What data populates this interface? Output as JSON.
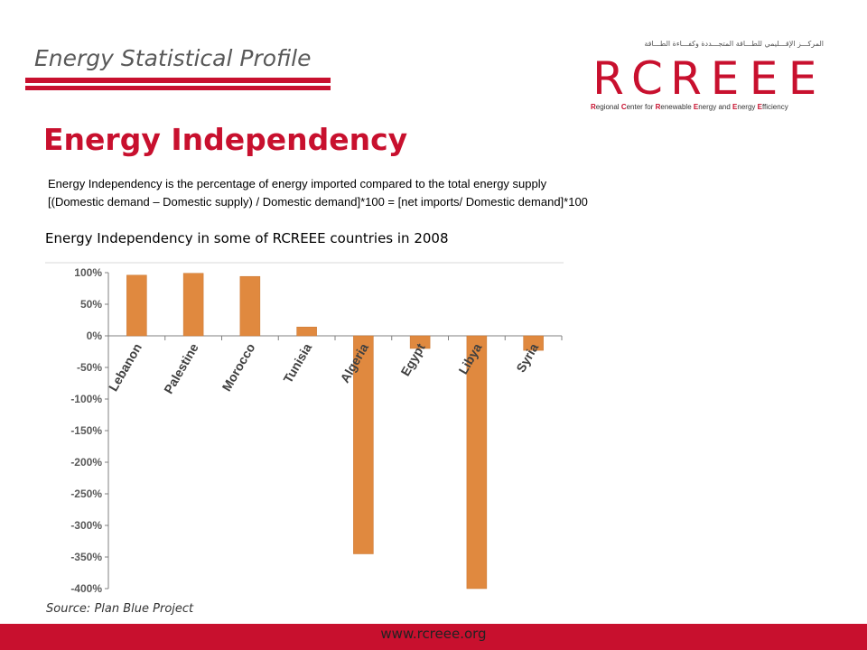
{
  "header": {
    "title": "Energy Statistical Profile"
  },
  "logo": {
    "arabic": "المركـــز الإقـــليمي للطـــاقة المتجـــددة وكفـــاءة الطـــاقة",
    "letters": [
      "R",
      "C",
      "R",
      "E",
      "E",
      "E"
    ],
    "subtitle_parts": [
      {
        "text": "R",
        "accent": true
      },
      {
        "text": "egional ",
        "accent": false
      },
      {
        "text": "C",
        "accent": true
      },
      {
        "text": "enter for ",
        "accent": false
      },
      {
        "text": "R",
        "accent": true
      },
      {
        "text": "enewable ",
        "accent": false
      },
      {
        "text": "E",
        "accent": true
      },
      {
        "text": "nergy and ",
        "accent": false
      },
      {
        "text": "E",
        "accent": true
      },
      {
        "text": "nergy ",
        "accent": false
      },
      {
        "text": "E",
        "accent": true
      },
      {
        "text": "fficiency",
        "accent": false
      }
    ],
    "color": "#c8102e"
  },
  "main_title": "Energy Independency",
  "description": {
    "line1": "Energy Independency is the percentage of energy imported compared to the total energy supply",
    "line2": "[(Domestic demand – Domestic supply) / Domestic demand]*100 = [net imports/ Domestic demand]*100"
  },
  "chart_title": "Energy Independency in some of RCREEE countries  in 2008",
  "chart_data": {
    "type": "bar",
    "categories": [
      "Lebanon",
      "Palestine",
      "Morocco",
      "Tunisia",
      "Algeria",
      "Egypt",
      "Libya",
      "Syria"
    ],
    "values": [
      96,
      99,
      94,
      14,
      -345,
      -20,
      -400,
      -23
    ],
    "ylim": [
      -400,
      100
    ],
    "yticks": [
      100,
      50,
      0,
      -50,
      -100,
      -150,
      -200,
      -250,
      -300,
      -350,
      -400
    ],
    "ytick_labels": [
      "100%",
      "50%",
      "0%",
      "-50%",
      "-100%",
      "-150%",
      "-200%",
      "-250%",
      "-300%",
      "-350%",
      "-400%"
    ],
    "bar_color": "#e0893f",
    "grid": false,
    "legend": "none"
  },
  "source": "Source: Plan Blue Project",
  "footer": {
    "url": "www.rcreee.org",
    "bar_color": "#c8102e"
  }
}
